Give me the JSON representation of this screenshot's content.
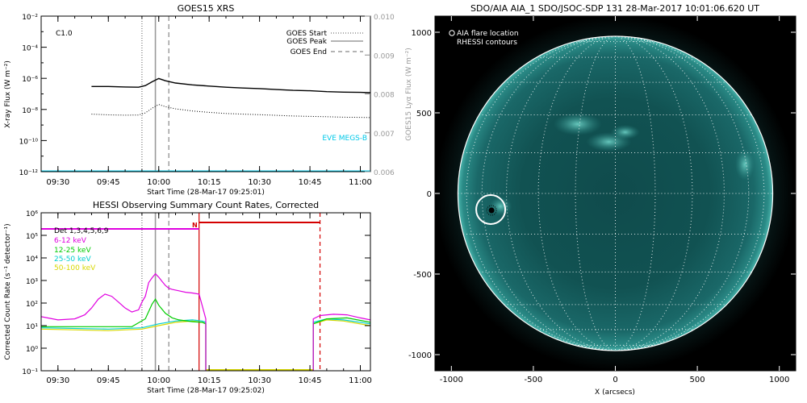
{
  "chart_data": [
    {
      "type": "line",
      "title": "GOES15 XRS",
      "xlabel": "Start Time (28-Mar-17 09:25:01)",
      "ylabel": "X-ray Flux (W m⁻²)",
      "ylabel_right": "GOES15 Lyα Flux (W m⁻²)",
      "x_ticks": [
        "09:30",
        "09:45",
        "10:00",
        "10:15",
        "10:30",
        "10:45",
        "11:00"
      ],
      "y_ticks": [
        "10⁻¹²",
        "10⁻¹⁰",
        "10⁻⁸",
        "10⁻⁶",
        "10⁻⁴",
        "10⁻²"
      ],
      "y_exponents": [
        -12,
        -10,
        -8,
        -6,
        -4,
        -2
      ],
      "y_right_ticks": [
        "0.006",
        "0.007",
        "0.008",
        "0.009",
        "0.010"
      ],
      "y_right_values": [
        0.006,
        0.007,
        0.008,
        0.009,
        0.01
      ],
      "xlim": [
        "09:25",
        "11:03"
      ],
      "ylim": [
        1e-12,
        0.01
      ],
      "y_scale": "log",
      "flare_class": "C1.0",
      "legend": {
        "start": "GOES Start",
        "peak": "GOES Peak",
        "end": "GOES End"
      },
      "events": {
        "start": "09:55",
        "peak": "09:59",
        "end": "10:03"
      },
      "eve_label": "EVE MEGS-B",
      "series": [
        {
          "name": "long",
          "x": [
            "09:40",
            "09:45",
            "09:50",
            "09:54",
            "09:56",
            "09:58",
            "10:00",
            "10:02",
            "10:05",
            "10:10",
            "10:15",
            "10:20",
            "10:25",
            "10:30",
            "10:35",
            "10:40",
            "10:45",
            "10:50",
            "10:55",
            "11:00",
            "11:03"
          ],
          "y": [
            3e-07,
            3e-07,
            2.8e-07,
            2.7e-07,
            3.4e-07,
            6e-07,
            9.8e-07,
            7e-07,
            5e-07,
            3.8e-07,
            3.2e-07,
            2.7e-07,
            2.4e-07,
            2.2e-07,
            1.9e-07,
            1.7e-07,
            1.6e-07,
            1.4e-07,
            1.3e-07,
            1.25e-07,
            1.2e-07
          ]
        },
        {
          "name": "short",
          "x": [
            "09:40",
            "09:45",
            "09:50",
            "09:54",
            "09:56",
            "09:58",
            "10:00",
            "10:02",
            "10:05",
            "10:10",
            "10:15",
            "10:20",
            "10:25",
            "10:30",
            "10:35",
            "10:40",
            "10:45",
            "10:50",
            "10:55",
            "11:00",
            "11:03"
          ],
          "y": [
            5e-09,
            4.5e-09,
            4.3e-09,
            4.4e-09,
            6e-09,
            1.2e-08,
            2.1e-08,
            1.5e-08,
            1.1e-08,
            8e-09,
            6.5e-09,
            5.5e-09,
            5e-09,
            4.6e-09,
            4.2e-09,
            3.8e-09,
            3.6e-09,
            3.4e-09,
            3.2e-09,
            3.1e-09,
            3e-09
          ]
        },
        {
          "name": "EVE MEGS-B",
          "x": [
            "09:25",
            "11:03"
          ],
          "y": [
            1e-12,
            1e-12
          ]
        }
      ]
    },
    {
      "type": "line",
      "title": "HESSI Observing Summary Count Rates, Corrected",
      "xlabel": "Start Time (28-Mar-17 09:25:02)",
      "ylabel": "Corrected Count Rate (s⁻¹ detector⁻¹)",
      "x_ticks": [
        "09:30",
        "09:45",
        "10:00",
        "10:15",
        "10:30",
        "10:45",
        "11:00"
      ],
      "y_ticks": [
        "10⁻¹",
        "10⁰",
        "10¹",
        "10²",
        "10³",
        "10⁴",
        "10⁵",
        "10⁶"
      ],
      "y_exponents": [
        -1,
        0,
        1,
        2,
        3,
        4,
        5,
        6
      ],
      "xlim": [
        "09:25",
        "11:03"
      ],
      "ylim": [
        0.1,
        1000000.0
      ],
      "y_scale": "log",
      "legend_title": "Det 1,3,4,5,6,9",
      "night_label": "N",
      "night_start": "10:12",
      "night_end": "10:48",
      "events": {
        "start": "09:55",
        "peak": "09:59",
        "end": "10:03"
      },
      "colors": {
        "6-12 keV": "#e000e0",
        "12-25 keV": "#00cc00",
        "25-50 keV": "#00cfcf",
        "50-100 keV": "#d8d800"
      },
      "series": [
        {
          "name": "6-12 keV",
          "x": [
            "09:25",
            "09:30",
            "09:35",
            "09:38",
            "09:40",
            "09:42",
            "09:44",
            "09:46",
            "09:48",
            "09:50",
            "09:52",
            "09:54",
            "09:55",
            "09:56",
            "09:57",
            "09:58",
            "09:59",
            "10:00",
            "10:01",
            "10:02",
            "10:03",
            "10:04",
            "10:06",
            "10:08",
            "10:10",
            "10:12",
            "10:14",
            "10:46",
            "10:48",
            "10:52",
            "10:56",
            "11:00",
            "11:03"
          ],
          "y": [
            25,
            18,
            20,
            30,
            60,
            150,
            250,
            200,
            110,
            60,
            40,
            50,
            110,
            200,
            800,
            1300,
            2000,
            1400,
            900,
            600,
            450,
            400,
            350,
            300,
            280,
            250,
            20,
            20,
            28,
            32,
            30,
            22,
            18
          ]
        },
        {
          "name": "12-25 keV",
          "x": [
            "09:25",
            "09:35",
            "09:45",
            "09:52",
            "09:56",
            "09:58",
            "09:59",
            "10:00",
            "10:02",
            "10:04",
            "10:06",
            "10:10",
            "10:13",
            "10:14",
            "10:46",
            "10:50",
            "10:56",
            "11:03"
          ],
          "y": [
            9,
            9,
            9,
            9,
            20,
            90,
            150,
            80,
            35,
            22,
            18,
            15,
            14,
            12,
            12,
            20,
            22,
            14
          ]
        },
        {
          "name": "25-50 keV",
          "x": [
            "09:25",
            "09:45",
            "09:55",
            "10:00",
            "10:05",
            "10:10",
            "10:13",
            "10:14",
            "10:46",
            "10:50",
            "10:55",
            "11:03"
          ],
          "y": [
            8,
            7,
            8,
            12,
            16,
            18,
            16,
            14,
            14,
            20,
            18,
            12
          ]
        },
        {
          "name": "50-100 keV",
          "x": [
            "09:25",
            "09:45",
            "09:55",
            "10:00",
            "10:05",
            "10:10",
            "10:13",
            "10:14",
            "10:46",
            "10:50",
            "10:55",
            "11:03"
          ],
          "y": [
            7,
            6,
            7,
            10,
            14,
            16,
            14,
            12,
            12,
            18,
            16,
            10
          ]
        }
      ]
    },
    {
      "type": "heatmap",
      "title": "SDO/AIA AIA_1 SDO/JSOC-SDP 131 28-Mar-2017 10:01:06.620 UT",
      "xlabel": "X (arcsecs)",
      "ylabel": "",
      "x_ticks": [
        "-1000",
        "-500",
        "0",
        "500",
        "1000"
      ],
      "x_values": [
        -1000,
        -500,
        0,
        500,
        1000
      ],
      "y_ticks": [
        "1000",
        "500",
        "0",
        "-500",
        "-1000"
      ],
      "y_values": [
        1000,
        500,
        0,
        -500,
        -1000
      ],
      "xlim": [
        -1100,
        1100
      ],
      "ylim": [
        -1100,
        1100
      ],
      "legend": [
        "AIA flare location",
        "RHESSI contours"
      ],
      "flare_location_arcsec": [
        -760,
        -100
      ],
      "solar_radius_arcsec": 960,
      "grid": true
    }
  ]
}
